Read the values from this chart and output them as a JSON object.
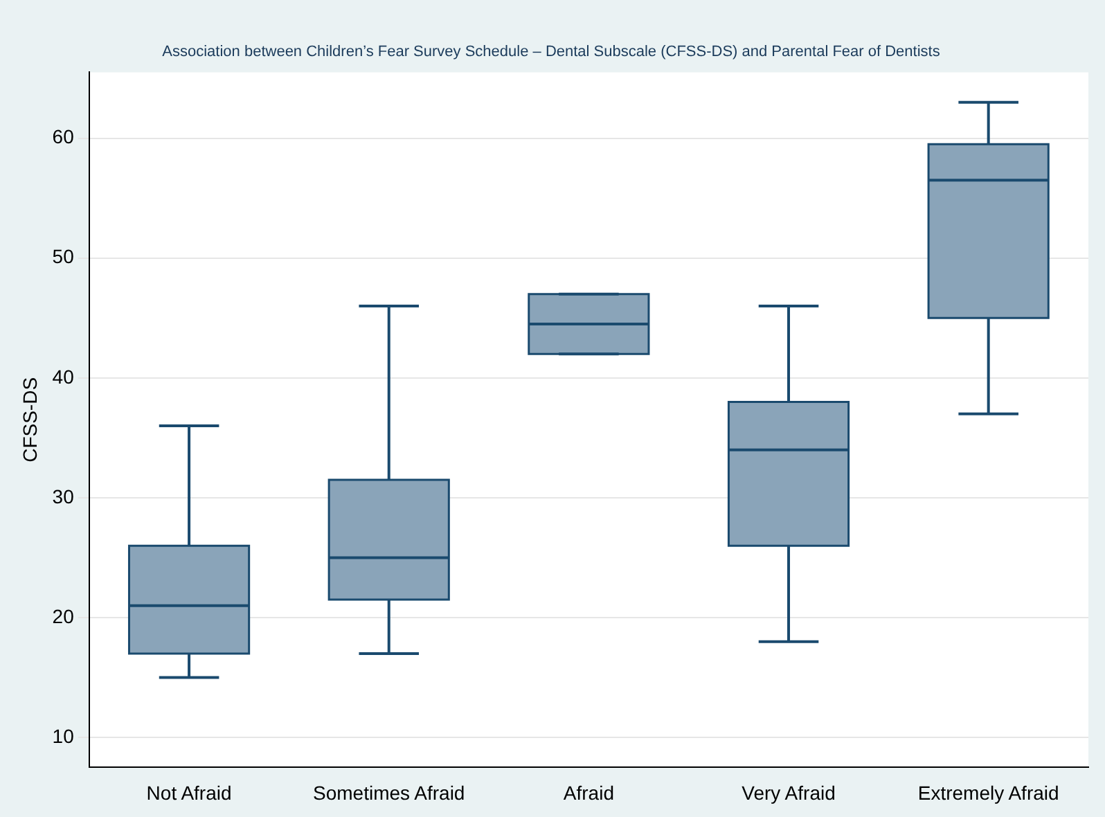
{
  "chart_data": {
    "type": "box",
    "title": "Association between Children’s Fear Survey Schedule – Dental Subscale (CFSS-DS) and Parental Fear of Dentists",
    "ylabel": "CFSS-DS",
    "categories": [
      "Not Afraid",
      "Sometimes Afraid",
      "Afraid",
      "Very Afraid",
      "Extremely Afraid"
    ],
    "series": [
      {
        "color": "#8aa4b9",
        "boxes": [
          {
            "low": 15,
            "q1": 17,
            "median": 21,
            "q3": 26,
            "high": 36
          },
          {
            "low": 17,
            "q1": 21.5,
            "median": 25,
            "q3": 31.5,
            "high": 46
          },
          {
            "low": 42,
            "q1": 42,
            "median": 44.5,
            "q3": 47,
            "high": 47
          },
          {
            "low": 18,
            "q1": 26,
            "median": 34,
            "q3": 38,
            "high": 46
          },
          {
            "low": 37,
            "q1": 45,
            "median": 56.5,
            "q3": 59.5,
            "high": 63
          }
        ]
      }
    ],
    "ylim": [
      7.5,
      65.5
    ],
    "yticks": [
      10,
      20,
      30,
      40,
      50,
      60
    ],
    "grid": "y",
    "legend": false
  }
}
